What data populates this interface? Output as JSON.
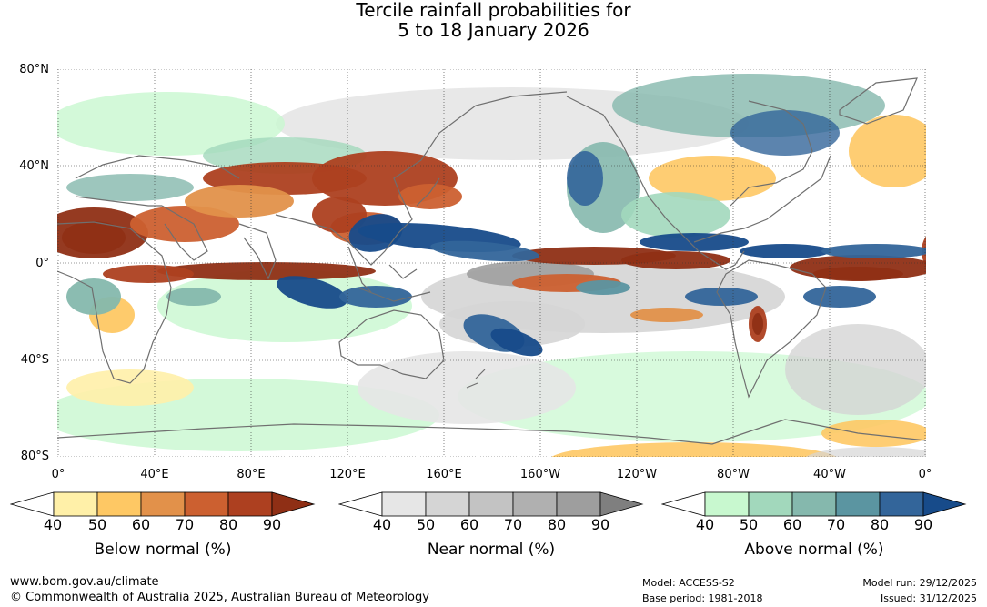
{
  "title": {
    "line1": "Tercile rainfall probabilities for",
    "line2": "5 to 18 January 2026"
  },
  "map": {
    "lat_labels": [
      "80°N",
      "40°N",
      "0°",
      "40°S",
      "80°S"
    ],
    "lon_labels": [
      "0°",
      "40°E",
      "80°E",
      "120°E",
      "160°E",
      "160°W",
      "120°W",
      "80°W",
      "40°W",
      "0°"
    ]
  },
  "legends": [
    {
      "title": "Below normal (%)",
      "ticks": [
        "40",
        "50",
        "60",
        "70",
        "80",
        "90"
      ],
      "colors": [
        "#ffffff",
        "#fff0a8",
        "#fec864",
        "#e2914a",
        "#cc6030",
        "#ad4020",
        "#8f2f15"
      ]
    },
    {
      "title": "Near normal (%)",
      "ticks": [
        "40",
        "50",
        "60",
        "70",
        "80",
        "90"
      ],
      "colors": [
        "#ffffff",
        "#e6e6e6",
        "#d5d5d5",
        "#c3c3c3",
        "#b0b0b0",
        "#9e9e9e",
        "#7f7f7f"
      ]
    },
    {
      "title": "Above normal (%)",
      "ticks": [
        "40",
        "50",
        "60",
        "70",
        "80",
        "90"
      ],
      "colors": [
        "#ffffff",
        "#c8f8cf",
        "#a2d8bc",
        "#85b8ad",
        "#5b95a1",
        "#33659a",
        "#174b8a"
      ]
    }
  ],
  "footer": {
    "website": "www.bom.gov.au/climate",
    "copyright": "© Commonwealth of Australia 2025, Australian Bureau of Meteorology",
    "model": "Model: ACCESS-S2",
    "base_period": "Base period: 1981-2018",
    "model_run": "Model run: 29/12/2025",
    "issued": "Issued: 31/12/2025"
  },
  "colors": {
    "below": [
      "#fff0a8",
      "#fec864",
      "#e2914a",
      "#cc6030",
      "#ad4020",
      "#8f2f15"
    ],
    "near": [
      "#e6e6e6",
      "#d5d5d5",
      "#c3c3c3",
      "#b0b0b0",
      "#9e9e9e",
      "#7f7f7f"
    ],
    "above": [
      "#c8f8cf",
      "#a2d8bc",
      "#85b8ad",
      "#5b95a1",
      "#33659a",
      "#174b8a"
    ],
    "coast": "#6f6f6f"
  }
}
